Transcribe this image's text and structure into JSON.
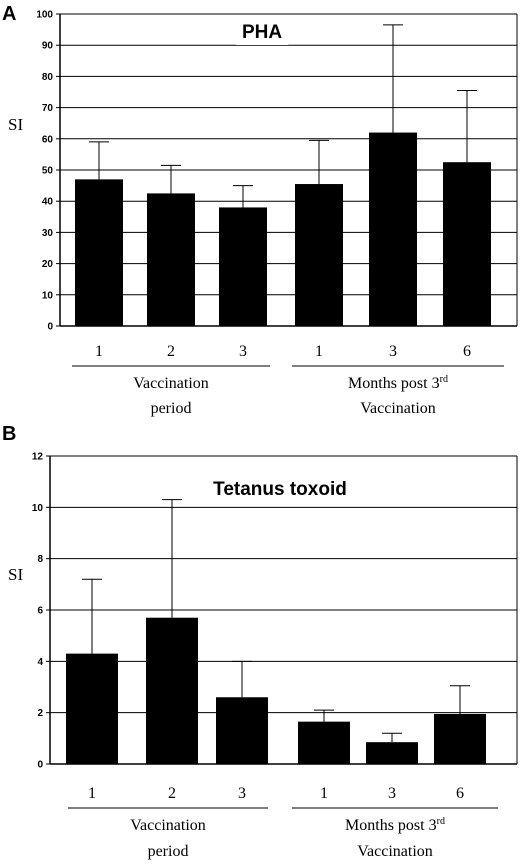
{
  "chart_data": [
    {
      "panel": "A",
      "type": "bar",
      "title": "PHA",
      "ylabel": "SI",
      "ylim": [
        0,
        100
      ],
      "yticks": [
        0,
        10,
        20,
        30,
        40,
        50,
        60,
        70,
        80,
        90,
        100
      ],
      "grid": true,
      "categories": [
        "1",
        "2",
        "3",
        "1",
        "3",
        "6"
      ],
      "values": [
        47,
        42.5,
        38,
        45.5,
        62,
        52.5
      ],
      "errors_upper": [
        59,
        51.5,
        45,
        59.5,
        96.5,
        75.5
      ],
      "groups": [
        {
          "label_lines": [
            "Vaccination",
            "period"
          ],
          "categories_idx": [
            0,
            1,
            2
          ]
        },
        {
          "label_lines": [
            "Months post 3",
            "Vaccination"
          ],
          "superscript": "rd",
          "categories_idx": [
            3,
            4,
            5
          ]
        }
      ]
    },
    {
      "panel": "B",
      "type": "bar",
      "title": "Tetanus toxoid",
      "ylabel": "SI",
      "ylim": [
        0,
        12
      ],
      "yticks": [
        0,
        2,
        4,
        6,
        8,
        10,
        12
      ],
      "grid": true,
      "categories": [
        "1",
        "2",
        "3",
        "1",
        "3",
        "6"
      ],
      "values": [
        4.3,
        5.7,
        2.6,
        1.65,
        0.85,
        1.95
      ],
      "errors_upper": [
        7.2,
        10.3,
        4.0,
        2.1,
        1.2,
        3.05
      ],
      "groups": [
        {
          "label_lines": [
            "Vaccination",
            "period"
          ],
          "categories_idx": [
            0,
            1,
            2
          ]
        },
        {
          "label_lines": [
            "Months post 3",
            "Vaccination"
          ],
          "superscript": "rd",
          "categories_idx": [
            3,
            4,
            5
          ]
        }
      ]
    }
  ]
}
